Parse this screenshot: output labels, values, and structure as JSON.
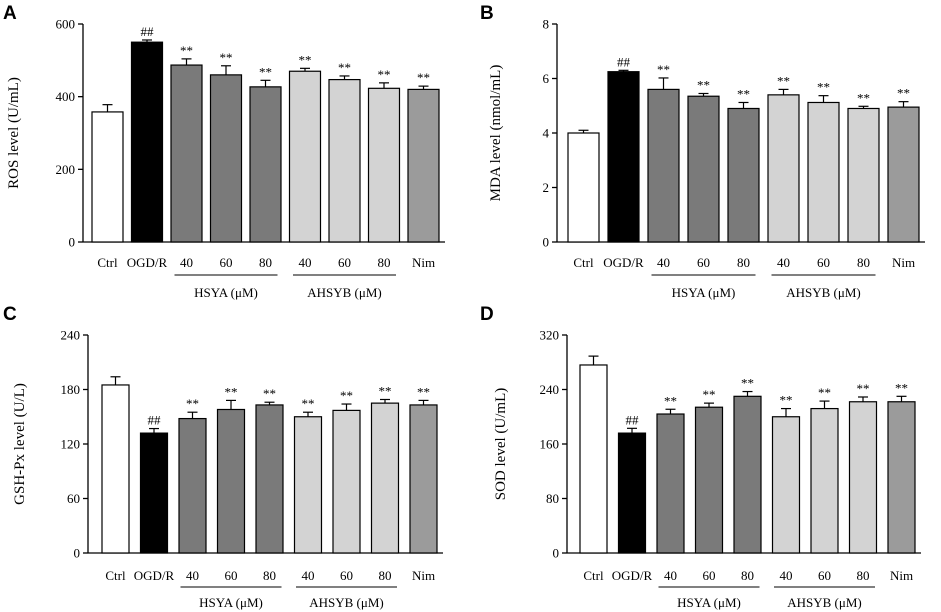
{
  "colors": {
    "ctrl": "#ffffff",
    "model": "#000000",
    "hsya": "#7a7a7a",
    "ahsyb": "#d3d3d3",
    "nim": "#9b9b9b",
    "stroke": "#000000"
  },
  "chart_data": [
    {
      "id": "A",
      "panel_letter": "A",
      "type": "bar",
      "ylabel": "ROS level (U/mL)",
      "ylim": [
        0,
        600
      ],
      "yticks": [
        0,
        200,
        400,
        600
      ],
      "categories": [
        "Ctrl",
        "OGD/R",
        "40",
        "60",
        "80",
        "40",
        "60",
        "80",
        "Nim"
      ],
      "values": [
        358,
        550,
        487,
        460,
        427,
        470,
        447,
        423,
        420
      ],
      "errors": [
        20,
        6,
        17,
        25,
        18,
        8,
        10,
        15,
        9
      ],
      "groups": [
        "ctrl",
        "model",
        "hsya",
        "hsya",
        "hsya",
        "ahsyb",
        "ahsyb",
        "ahsyb",
        "nim"
      ],
      "significance": [
        "",
        "##",
        "**",
        "**",
        "**",
        "**",
        "**",
        "**",
        "**"
      ],
      "group_labels": {
        "hsya": "HSYA (μM)",
        "ahsyb": "AHSYB (μM)"
      }
    },
    {
      "id": "B",
      "panel_letter": "B",
      "type": "bar",
      "ylabel": "MDA level (nmol/mL)",
      "ylim": [
        0,
        8
      ],
      "yticks": [
        0,
        2,
        4,
        6,
        8
      ],
      "categories": [
        "Ctrl",
        "OGD/R",
        "40",
        "60",
        "80",
        "40",
        "60",
        "80",
        "Nim"
      ],
      "values": [
        4.0,
        6.25,
        5.6,
        5.35,
        4.9,
        5.4,
        5.12,
        4.9,
        4.95
      ],
      "errors": [
        0.1,
        0.05,
        0.42,
        0.1,
        0.22,
        0.2,
        0.25,
        0.08,
        0.2
      ],
      "groups": [
        "ctrl",
        "model",
        "hsya",
        "hsya",
        "hsya",
        "ahsyb",
        "ahsyb",
        "ahsyb",
        "nim"
      ],
      "significance": [
        "",
        "##",
        "**",
        "**",
        "**",
        "**",
        "**",
        "**",
        "**"
      ],
      "group_labels": {
        "hsya": "HSYA (μM)",
        "ahsyb": "AHSYB (μM)"
      }
    },
    {
      "id": "C",
      "panel_letter": "C",
      "type": "bar",
      "ylabel": "GSH-Px level (U/L)",
      "ylim": [
        0,
        240
      ],
      "yticks": [
        0,
        60,
        120,
        180,
        240
      ],
      "categories": [
        "Ctrl",
        "OGD/R",
        "40",
        "60",
        "80",
        "40",
        "60",
        "80",
        "Nim"
      ],
      "values": [
        185,
        132,
        148,
        158,
        163,
        150,
        157,
        165,
        163
      ],
      "errors": [
        9,
        5,
        7,
        10,
        3,
        5,
        7,
        4,
        5
      ],
      "groups": [
        "ctrl",
        "model",
        "hsya",
        "hsya",
        "hsya",
        "ahsyb",
        "ahsyb",
        "ahsyb",
        "nim"
      ],
      "significance": [
        "",
        "##",
        "**",
        "**",
        "**",
        "**",
        "**",
        "**",
        "**"
      ],
      "group_labels": {
        "hsya": "HSYA (μM)",
        "ahsyb": "AHSYB (μM)"
      }
    },
    {
      "id": "D",
      "panel_letter": "D",
      "type": "bar",
      "ylabel": "SOD level (U/mL)",
      "ylim": [
        0,
        320
      ],
      "yticks": [
        0,
        80,
        160,
        240,
        320
      ],
      "categories": [
        "Ctrl",
        "OGD/R",
        "40",
        "60",
        "80",
        "40",
        "60",
        "80",
        "Nim"
      ],
      "values": [
        276,
        176,
        204,
        214,
        230,
        200,
        212,
        222,
        222
      ],
      "errors": [
        13,
        7,
        7,
        6,
        7,
        12,
        11,
        7,
        8
      ],
      "groups": [
        "ctrl",
        "model",
        "hsya",
        "hsya",
        "hsya",
        "ahsyb",
        "ahsyb",
        "ahsyb",
        "nim"
      ],
      "significance": [
        "",
        "##",
        "**",
        "**",
        "**",
        "**",
        "**",
        "**",
        "**"
      ],
      "group_labels": {
        "hsya": "HSYA (μM)",
        "ahsyb": "AHSYB (μM)"
      }
    }
  ]
}
